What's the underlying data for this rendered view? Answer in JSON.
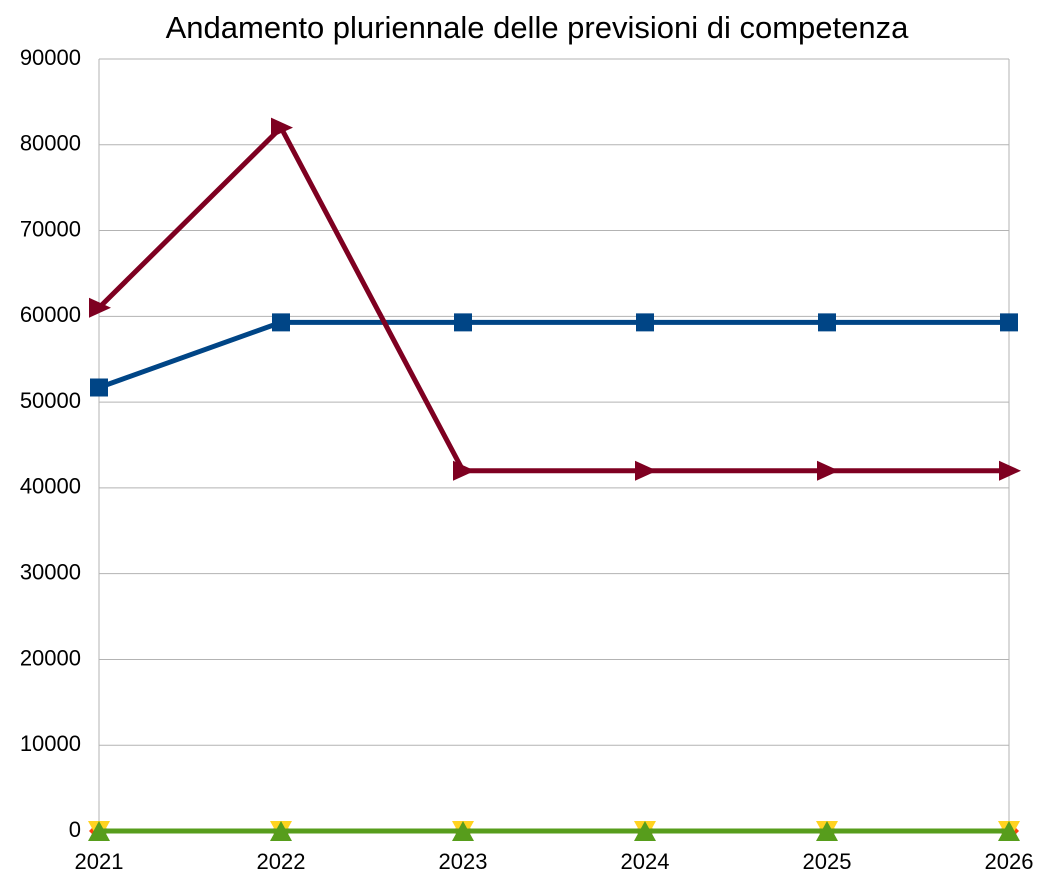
{
  "chart_data": {
    "type": "line",
    "title": "Andamento pluriennale delle previsioni di competenza",
    "categories": [
      "2021",
      "2022",
      "2023",
      "2024",
      "2025",
      "2026"
    ],
    "series": [
      {
        "color": "#004586",
        "marker": "square",
        "values": [
          51700,
          59300,
          59300,
          59300,
          59300,
          59300
        ]
      },
      {
        "color": "#7e0021",
        "marker": "triangle-right",
        "values": [
          61000,
          82000,
          42000,
          42000,
          42000,
          42000
        ]
      },
      {
        "color": "#ff420e",
        "marker": "diamond",
        "values": [
          0,
          0,
          0,
          0,
          0,
          0
        ]
      },
      {
        "color": "#ffd320",
        "marker": "triangle-down",
        "values": [
          0,
          0,
          0,
          0,
          0,
          0
        ]
      },
      {
        "color": "#579d1c",
        "marker": "triangle-up",
        "values": [
          0,
          0,
          0,
          0,
          0,
          0
        ]
      }
    ],
    "ylim": [
      0,
      90000
    ],
    "yticks": [
      0,
      10000,
      20000,
      30000,
      40000,
      50000,
      60000,
      70000,
      80000,
      90000
    ],
    "grid": true
  }
}
